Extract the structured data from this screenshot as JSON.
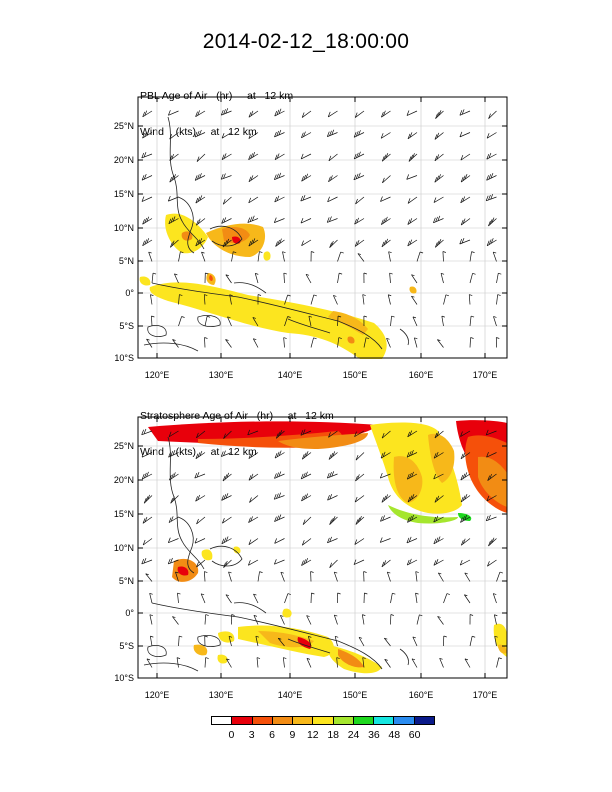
{
  "title": "2014-02-12_18:00:00",
  "panels": [
    {
      "line1": "PBL Age of Air   (hr)     at   12 km",
      "line2": "Wind    (kts)     at   12 km"
    },
    {
      "line1": "Stratosphere Age of Air   (hr)     at   12 km",
      "line2": "Wind    (kts)     at   12 km"
    }
  ],
  "lat_labels": [
    "25°N",
    "20°N",
    "15°N",
    "10°N",
    "5°N",
    "0°",
    "5°S",
    "10°S"
  ],
  "lon_labels": [
    "120°E",
    "130°E",
    "140°E",
    "150°E",
    "160°E",
    "170°E"
  ],
  "colorbar": {
    "colors": [
      "#ffffff",
      "#e8000b",
      "#f5500a",
      "#f28c14",
      "#f7b81a",
      "#fce51f",
      "#a5e62e",
      "#1ed81e",
      "#16e6e0",
      "#2a8cf0",
      "#0a1a8a"
    ],
    "labels": [
      "0",
      "3",
      "6",
      "9",
      "12",
      "18",
      "24",
      "36",
      "48",
      "60"
    ]
  },
  "colors": {
    "red": "#e8000b",
    "red_orange": "#f5500a",
    "orange": "#f28c14",
    "light_orange": "#f7b81a",
    "yellow": "#fce51f",
    "light_green": "#a5e62e",
    "green": "#1ed81e",
    "coast": "#222222",
    "grid": "#c8c8c8"
  }
}
